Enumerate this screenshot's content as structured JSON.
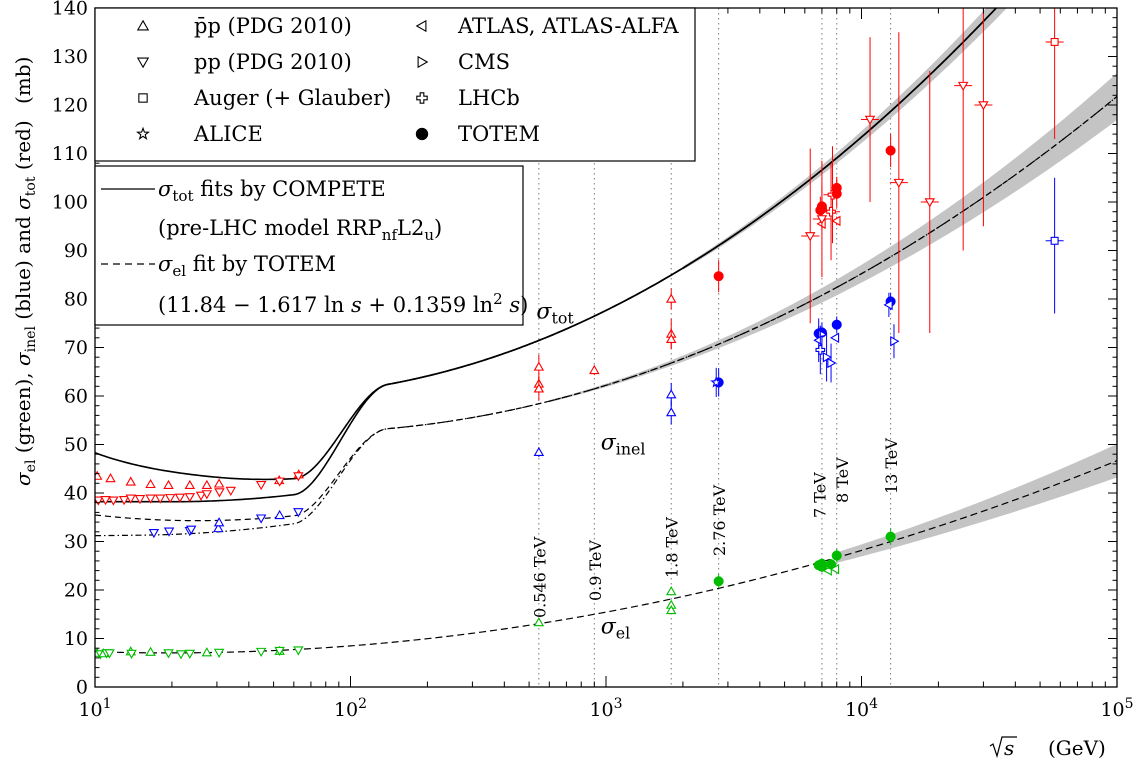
{
  "chart_data": {
    "type": "scatter",
    "xscale": "log",
    "xlim": [
      10,
      100000
    ],
    "ylim": [
      0,
      140
    ],
    "x_ticks": [
      10,
      100,
      1000,
      10000,
      100000
    ],
    "x_tick_labels": [
      {
        "base": "10",
        "exp": "1"
      },
      {
        "base": "10",
        "exp": "2"
      },
      {
        "base": "10",
        "exp": "3"
      },
      {
        "base": "10",
        "exp": "4"
      },
      {
        "base": "10",
        "exp": "5"
      }
    ],
    "y_ticks": [
      0,
      10,
      20,
      30,
      40,
      50,
      60,
      70,
      80,
      90,
      100,
      110,
      120,
      130,
      140
    ],
    "y_tick_labels": [
      "0",
      "10",
      "20",
      "30",
      "40",
      "50",
      "60",
      "70",
      "80",
      "90",
      "100",
      "110",
      "120",
      "130",
      "140"
    ],
    "ylabel": "σel (green), σinel (blue) and σtot (red)",
    "ylabel_unit": "(mb)",
    "xlabel": "√s",
    "xlabel_unit": "(GeV)",
    "energy_markers": [
      {
        "x": 546,
        "label": "0.546 TeV"
      },
      {
        "x": 900,
        "label": "0.9 TeV"
      },
      {
        "x": 1800,
        "label": "1.8 TeV"
      },
      {
        "x": 2760,
        "label": "2.76 TeV"
      },
      {
        "x": 7000,
        "label": "7 TeV"
      },
      {
        "x": 8000,
        "label": "8 TeV"
      },
      {
        "x": 13000,
        "label": "13 TeV"
      }
    ],
    "curve_labels": [
      {
        "text": "σtot",
        "x": 700,
        "y": 76,
        "color": "#ff0000"
      },
      {
        "text": "σinel",
        "x": 1250,
        "y": 49,
        "color": "#0000ff"
      },
      {
        "text": "σel",
        "x": 1250,
        "y": 11,
        "color": "#00bb00"
      }
    ],
    "legend_markers": [
      {
        "symbol": "triangle-up",
        "label": "p̄p (PDG 2010)"
      },
      {
        "symbol": "triangle-down",
        "label": "pp (PDG 2010)"
      },
      {
        "symbol": "square",
        "label": "Auger (+ Glauber)"
      },
      {
        "symbol": "star",
        "label": "ALICE"
      },
      {
        "symbol": "triangle-left",
        "label": "ATLAS, ATLAS-ALFA"
      },
      {
        "symbol": "triangle-right",
        "label": "CMS"
      },
      {
        "symbol": "cross",
        "label": "LHCb"
      },
      {
        "symbol": "circle",
        "label": "TOTEM"
      }
    ],
    "legend_fits": [
      {
        "style": "solid",
        "label": "σtot fits by COMPETE",
        "sublabel": "(pre-LHC model RRPnfL2u)"
      },
      {
        "style": "dashed",
        "label": "σel fit by TOTEM",
        "sublabel": "(11.84 − 1.617 ln s + 0.1359 ln² s)"
      }
    ],
    "series": [
      {
        "name": "σtot",
        "color": "#ff0000",
        "points": [
          {
            "x": 10.2,
            "y": 43.5,
            "s": "triangle-up"
          },
          {
            "x": 11.5,
            "y": 43.0,
            "s": "triangle-up"
          },
          {
            "x": 13.8,
            "y": 42.3,
            "s": "triangle-up"
          },
          {
            "x": 16.5,
            "y": 41.8,
            "s": "triangle-up"
          },
          {
            "x": 19.4,
            "y": 41.6,
            "s": "triangle-up"
          },
          {
            "x": 23.5,
            "y": 41.6,
            "s": "triangle-up"
          },
          {
            "x": 27.4,
            "y": 41.6,
            "s": "triangle-up"
          },
          {
            "x": 30.6,
            "y": 41.9,
            "s": "triangle-up"
          },
          {
            "x": 52.6,
            "y": 42.6,
            "s": "triangle-up"
          },
          {
            "x": 62.7,
            "y": 43.8,
            "s": "triangle-up"
          },
          {
            "x": 10.3,
            "y": 38.5,
            "s": "triangle-down"
          },
          {
            "x": 11.0,
            "y": 38.6,
            "s": "triangle-down"
          },
          {
            "x": 11.8,
            "y": 38.5,
            "s": "triangle-down"
          },
          {
            "x": 13.0,
            "y": 38.6,
            "s": "triangle-down"
          },
          {
            "x": 13.8,
            "y": 38.9,
            "s": "triangle-down"
          },
          {
            "x": 15.0,
            "y": 38.8,
            "s": "triangle-down"
          },
          {
            "x": 16.5,
            "y": 38.9,
            "s": "triangle-down"
          },
          {
            "x": 18.0,
            "y": 38.9,
            "s": "triangle-down"
          },
          {
            "x": 19.7,
            "y": 39.0,
            "s": "triangle-down"
          },
          {
            "x": 21.5,
            "y": 39.1,
            "s": "triangle-down"
          },
          {
            "x": 23.5,
            "y": 39.2,
            "s": "triangle-down"
          },
          {
            "x": 26.0,
            "y": 39.5,
            "s": "triangle-down"
          },
          {
            "x": 27.4,
            "y": 39.8,
            "s": "triangle-down"
          },
          {
            "x": 30.7,
            "y": 40.2,
            "s": "triangle-down"
          },
          {
            "x": 34.0,
            "y": 40.5,
            "s": "triangle-down"
          },
          {
            "x": 44.7,
            "y": 41.7,
            "s": "triangle-down"
          },
          {
            "x": 52.8,
            "y": 42.4,
            "s": "triangle-down"
          },
          {
            "x": 62.5,
            "y": 43.5,
            "s": "triangle-down"
          },
          {
            "x": 546,
            "y": 66.0,
            "s": "triangle-up",
            "eu": 2.5,
            "ed": 2.5
          },
          {
            "x": 546,
            "y": 62.5,
            "s": "triangle-up",
            "eu": 1.5,
            "ed": 1.5
          },
          {
            "x": 546,
            "y": 61.5,
            "s": "triangle-up",
            "eu": 2.5,
            "ed": 2.5
          },
          {
            "x": 900,
            "y": 65.3,
            "s": "triangle-up",
            "eu": 1.0,
            "ed": 1.0
          },
          {
            "x": 1800,
            "y": 80.0,
            "s": "triangle-up",
            "eu": 2.2,
            "ed": 2.2
          },
          {
            "x": 1800,
            "y": 72.8,
            "s": "triangle-up",
            "eu": 3.1,
            "ed": 3.1
          },
          {
            "x": 1800,
            "y": 71.7,
            "s": "triangle-up",
            "eu": 2.0,
            "ed": 2.0
          },
          {
            "x": 2760,
            "y": 84.7,
            "s": "circle",
            "eu": 3.3,
            "ed": 3.3
          },
          {
            "x": 6300,
            "y": 93.0,
            "s": "triangle-down",
            "eu": 18,
            "ed": 18
          },
          {
            "x": 6900,
            "y": 98.3,
            "s": "circle",
            "eu": 2.8,
            "ed": 2.8
          },
          {
            "x": 7000,
            "y": 98.6,
            "s": "circle",
            "eu": 2.2,
            "ed": 2.2
          },
          {
            "x": 7000,
            "y": 99.1,
            "s": "circle",
            "eu": 4.3,
            "ed": 4.3
          },
          {
            "x": 7000,
            "y": 95.5,
            "s": "triangle-left",
            "eu": 1.4,
            "ed": 1.4
          },
          {
            "x": 7000,
            "y": 96.5,
            "s": "triangle-down",
            "eu": 12,
            "ed": 12
          },
          {
            "x": 7600,
            "y": 98.0,
            "s": "cross",
            "eu": 10,
            "ed": 10
          },
          {
            "x": 7700,
            "y": 101.5,
            "s": "cross",
            "eu": 10,
            "ed": 10
          },
          {
            "x": 8000,
            "y": 101.7,
            "s": "circle",
            "eu": 2.9,
            "ed": 2.9
          },
          {
            "x": 8000,
            "y": 102.9,
            "s": "circle",
            "eu": 2.3,
            "ed": 2.3
          },
          {
            "x": 8000,
            "y": 96.1,
            "s": "triangle-left",
            "eu": 0.9,
            "ed": 0.9
          },
          {
            "x": 10800,
            "y": 117.0,
            "s": "triangle-down",
            "eu": 17,
            "ed": 17
          },
          {
            "x": 13000,
            "y": 110.6,
            "s": "circle",
            "eu": 3.4,
            "ed": 3.4
          },
          {
            "x": 14000,
            "y": 104.0,
            "s": "triangle-down",
            "eu": 31,
            "ed": 31
          },
          {
            "x": 18500,
            "y": 100.0,
            "s": "triangle-down",
            "eu": 27,
            "ed": 27
          },
          {
            "x": 25000,
            "y": 124.0,
            "s": "triangle-down",
            "eu": 34,
            "ed": 34
          },
          {
            "x": 30000,
            "y": 120.0,
            "s": "triangle-down",
            "eu": 25,
            "ed": 25
          },
          {
            "x": 57000,
            "y": 133.0,
            "s": "square",
            "eu": 23,
            "ed": 20
          }
        ]
      },
      {
        "name": "σinel",
        "color": "#0000ff",
        "points": [
          {
            "x": 17.0,
            "y": 31.8,
            "s": "triangle-down"
          },
          {
            "x": 19.5,
            "y": 32.1,
            "s": "triangle-down"
          },
          {
            "x": 23.5,
            "y": 32.2,
            "s": "triangle-down"
          },
          {
            "x": 23.8,
            "y": 32.5,
            "s": "triangle-down"
          },
          {
            "x": 30.4,
            "y": 32.7,
            "s": "triangle-up"
          },
          {
            "x": 30.6,
            "y": 33.9,
            "s": "triangle-up"
          },
          {
            "x": 44.7,
            "y": 34.8,
            "s": "triangle-down"
          },
          {
            "x": 52.8,
            "y": 35.4,
            "s": "triangle-up"
          },
          {
            "x": 62.5,
            "y": 36.1,
            "s": "triangle-down"
          },
          {
            "x": 546,
            "y": 48.4,
            "s": "triangle-up",
            "eu": 1.0,
            "ed": 1.0
          },
          {
            "x": 1800,
            "y": 60.3,
            "s": "triangle-up",
            "eu": 2.4,
            "ed": 2.4
          },
          {
            "x": 1800,
            "y": 56.6,
            "s": "triangle-up",
            "eu": 2.5,
            "ed": 2.5
          },
          {
            "x": 2760,
            "y": 62.8,
            "s": "circle",
            "eu": 2.9,
            "ed": 2.9
          },
          {
            "x": 2700,
            "y": 62.8,
            "s": "star",
            "eu": 3.0,
            "ed": 3.0
          },
          {
            "x": 6800,
            "y": 72.9,
            "s": "circle",
            "eu": 1.5,
            "ed": 1.5
          },
          {
            "x": 7000,
            "y": 73.1,
            "s": "circle",
            "eu": 1.3,
            "ed": 1.3
          },
          {
            "x": 7000,
            "y": 72.7,
            "s": "triangle-right",
            "eu": 2.5,
            "ed": 2.5
          },
          {
            "x": 6800,
            "y": 71.5,
            "s": "triangle-left",
            "eu": 4.5,
            "ed": 4.5
          },
          {
            "x": 6900,
            "y": 69.5,
            "s": "cross",
            "eu": 5.0,
            "ed": 5.0
          },
          {
            "x": 7300,
            "y": 68.0,
            "s": "triangle-right",
            "eu": 5.0,
            "ed": 5.0
          },
          {
            "x": 7600,
            "y": 66.8,
            "s": "triangle-right",
            "eu": 4.0,
            "ed": 4.0
          },
          {
            "x": 7900,
            "y": 72.0,
            "s": "triangle-left",
            "eu": 0.5,
            "ed": 0.5
          },
          {
            "x": 8000,
            "y": 74.7,
            "s": "circle",
            "eu": 1.7,
            "ed": 1.7
          },
          {
            "x": 13000,
            "y": 79.5,
            "s": "circle",
            "eu": 1.8,
            "ed": 1.8
          },
          {
            "x": 12800,
            "y": 78.8,
            "s": "triangle-left",
            "eu": 2.5,
            "ed": 2.5
          },
          {
            "x": 13400,
            "y": 71.3,
            "s": "triangle-right",
            "eu": 3.5,
            "ed": 3.5
          },
          {
            "x": 57000,
            "y": 92.0,
            "s": "square",
            "eu": 13,
            "ed": 15
          }
        ]
      },
      {
        "name": "σel",
        "color": "#00bb00",
        "points": [
          {
            "x": 10.2,
            "y": 7.0,
            "s": "triangle-up"
          },
          {
            "x": 10.5,
            "y": 6.8,
            "s": "triangle-down"
          },
          {
            "x": 10.8,
            "y": 6.9,
            "s": "triangle-up"
          },
          {
            "x": 11.1,
            "y": 7.0,
            "s": "triangle-down"
          },
          {
            "x": 11.4,
            "y": 7.0,
            "s": "triangle-down"
          },
          {
            "x": 13.8,
            "y": 7.3,
            "s": "triangle-up"
          },
          {
            "x": 13.9,
            "y": 6.9,
            "s": "triangle-down"
          },
          {
            "x": 16.5,
            "y": 7.2,
            "s": "triangle-up"
          },
          {
            "x": 19.4,
            "y": 7.0,
            "s": "triangle-down"
          },
          {
            "x": 21.7,
            "y": 6.8,
            "s": "triangle-down"
          },
          {
            "x": 23.5,
            "y": 6.9,
            "s": "triangle-down"
          },
          {
            "x": 27.4,
            "y": 7.1,
            "s": "triangle-up"
          },
          {
            "x": 30.6,
            "y": 7.1,
            "s": "triangle-down"
          },
          {
            "x": 44.7,
            "y": 7.3,
            "s": "triangle-down"
          },
          {
            "x": 52.8,
            "y": 7.4,
            "s": "triangle-up"
          },
          {
            "x": 52.8,
            "y": 7.5,
            "s": "triangle-down"
          },
          {
            "x": 62.5,
            "y": 7.6,
            "s": "triangle-down"
          },
          {
            "x": 546,
            "y": 13.3,
            "s": "triangle-up",
            "eu": 0.6,
            "ed": 0.6
          },
          {
            "x": 1800,
            "y": 19.7,
            "s": "triangle-up",
            "eu": 0.8,
            "ed": 0.8
          },
          {
            "x": 1800,
            "y": 16.9,
            "s": "triangle-up",
            "eu": 0.7,
            "ed": 0.7
          },
          {
            "x": 1800,
            "y": 15.8,
            "s": "triangle-up",
            "eu": 0.8,
            "ed": 0.8
          },
          {
            "x": 2760,
            "y": 21.8,
            "s": "circle",
            "eu": 1.4,
            "ed": 1.4
          },
          {
            "x": 6800,
            "y": 25.1,
            "s": "circle",
            "eu": 1.1,
            "ed": 1.1
          },
          {
            "x": 7000,
            "y": 24.8,
            "s": "circle",
            "eu": 1.2,
            "ed": 1.2
          },
          {
            "x": 7000,
            "y": 25.4,
            "s": "circle",
            "eu": 1.1,
            "ed": 1.1
          },
          {
            "x": 7400,
            "y": 24.0,
            "s": "triangle-left",
            "eu": 0.6,
            "ed": 0.6
          },
          {
            "x": 7600,
            "y": 25.3,
            "s": "circle",
            "eu": 1.1,
            "ed": 1.1
          },
          {
            "x": 7900,
            "y": 24.3,
            "s": "triangle-left",
            "eu": 0.6,
            "ed": 0.6
          },
          {
            "x": 8000,
            "y": 27.1,
            "s": "circle",
            "eu": 1.4,
            "ed": 1.4
          },
          {
            "x": 13000,
            "y": 31.0,
            "s": "circle",
            "eu": 1.7,
            "ed": 1.7
          }
        ]
      }
    ],
    "fits": [
      {
        "name": "σtot fits by COMPETE",
        "style": "solid",
        "band": true
      },
      {
        "name": "σinel",
        "style": "dashdot",
        "band": true
      },
      {
        "name": "σel fit by TOTEM",
        "style": "dashed",
        "band": true
      }
    ]
  }
}
